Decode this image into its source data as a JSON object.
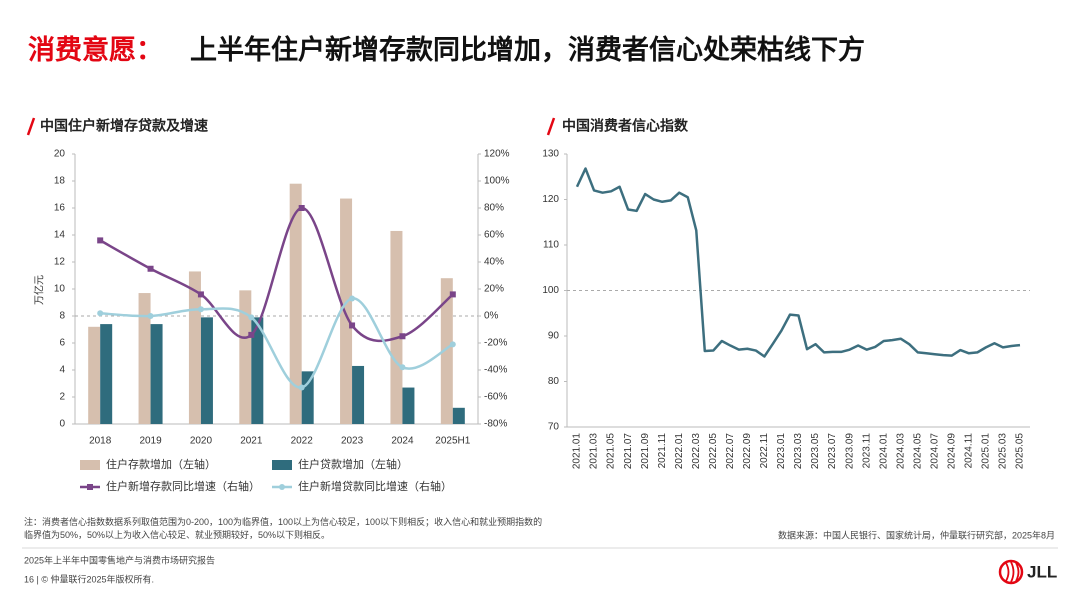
{
  "header": {
    "title_highlight": "消费意愿：",
    "title": "上半年住户新增存款同比增加，消费者信心处荣枯线下方"
  },
  "chart_data": [
    {
      "type": "combo",
      "title": "中国住户新增存贷款及增速",
      "y_label": "万亿元",
      "categories": [
        "2018",
        "2019",
        "2020",
        "2021",
        "2022",
        "2023",
        "2024",
        "2025H1"
      ],
      "ylim": [
        0,
        20
      ],
      "yticks": [
        0,
        2,
        4,
        6,
        8,
        10,
        12,
        14,
        16,
        18,
        20
      ],
      "y2lim": [
        -80,
        120
      ],
      "y2ticks": [
        {
          "value": -80,
          "label": "-80%"
        },
        {
          "value": -60,
          "label": "-60%"
        },
        {
          "value": -40,
          "label": "-40%"
        },
        {
          "value": -20,
          "label": "-20%"
        },
        {
          "value": 0,
          "label": "0%"
        },
        {
          "value": 20,
          "label": "20%"
        },
        {
          "value": 40,
          "label": "40%"
        },
        {
          "value": 60,
          "label": "60%"
        },
        {
          "value": 80,
          "label": "80%"
        },
        {
          "value": 100,
          "label": "100%"
        },
        {
          "value": 120,
          "label": "120%"
        }
      ],
      "reference_line": {
        "axis": "y2",
        "value": 0
      },
      "series": [
        {
          "name": "住户存款增加（左轴）",
          "type": "bar",
          "color": "#d6bfae",
          "values": [
            7.2,
            9.7,
            11.3,
            9.9,
            17.8,
            16.7,
            14.3,
            10.8
          ]
        },
        {
          "name": "住户贷款增加（左轴）",
          "type": "bar",
          "color": "#2f6c7d",
          "values": [
            7.4,
            7.4,
            7.9,
            7.9,
            3.9,
            4.3,
            2.7,
            1.2
          ]
        },
        {
          "name": "住户新增存款同比增速（右轴）",
          "type": "line",
          "axis": "y2",
          "marker": "square",
          "color": "#7a4589",
          "values": [
            56,
            35,
            16,
            -14,
            80,
            -7,
            -15,
            16
          ]
        },
        {
          "name": "住户新增贷款同比增速（右轴）",
          "type": "line",
          "axis": "y2",
          "marker": "circle",
          "color": "#9fcfdc",
          "values": [
            2,
            0,
            5,
            -1,
            -53,
            13,
            -38,
            -21
          ]
        }
      ]
    },
    {
      "type": "line",
      "title": "中国消费者信心指数",
      "color": "#3d6f7f",
      "categories": [
        "2021.01",
        null,
        "2021.03",
        null,
        "2021.05",
        null,
        "2021.07",
        null,
        "2021.09",
        null,
        "2021.11",
        null,
        "2022.01",
        null,
        "2022.03",
        null,
        "2022.05",
        null,
        "2022.07",
        null,
        "2022.09",
        null,
        "2022.11",
        null,
        "2023.01",
        null,
        "2023.03",
        null,
        "2023.05",
        null,
        "2023.07",
        null,
        "2023.09",
        null,
        "2023.11",
        null,
        "2024.01",
        null,
        "2024.03",
        null,
        "2024.05",
        null,
        "2024.07",
        null,
        "2024.09",
        null,
        "2024.11",
        null,
        "2025.01",
        null,
        "2025.03",
        null,
        "2025.05"
      ],
      "values": [
        122.8,
        126.8,
        122,
        121.5,
        121.8,
        122.8,
        117.8,
        117.5,
        121.2,
        120,
        119.5,
        119.8,
        121.5,
        120.5,
        113.2,
        86.7,
        86.8,
        88.9,
        87.9,
        87,
        87.2,
        86.8,
        85.5,
        88.3,
        91.2,
        94.7,
        94.5,
        87.1,
        88.2,
        86.4,
        86.5,
        86.5,
        87,
        87.9,
        87,
        87.6,
        88.9,
        89.1,
        89.4,
        88.2,
        86.4,
        86.2,
        86,
        85.8,
        85.7,
        86.9,
        86.2,
        86.4,
        87.5,
        88.4,
        87.5,
        87.8,
        88
      ],
      "ylim": [
        70,
        130
      ],
      "yticks": [
        70,
        80,
        90,
        100,
        110,
        120,
        130
      ],
      "reference_line": {
        "value": 100
      }
    }
  ],
  "footnote": "注：消费者信心指数数据系列取值范围为0-200，100为临界值，100以上为信心较足，100以下则相反；收入信心和就业预期指数的临界值为50%，50%以上为收入信心较足、就业预期较好，50%以下则相反。",
  "source": "数据来源：中国人民银行、国家统计局，仲量联行研究部，2025年8月",
  "report_title": "2025年上半年中国零售地产与消费市场研究报告",
  "page_footer": "16 | © 仲量联行2025年版权所有.",
  "logo": "JLL"
}
